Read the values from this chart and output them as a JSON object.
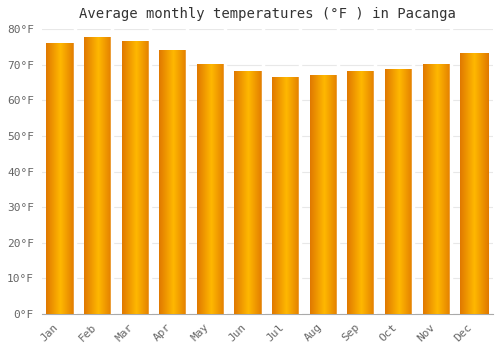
{
  "title": "Average monthly temperatures (°F ) in Pacanga",
  "months": [
    "Jan",
    "Feb",
    "Mar",
    "Apr",
    "May",
    "Jun",
    "Jul",
    "Aug",
    "Sep",
    "Oct",
    "Nov",
    "Dec"
  ],
  "values": [
    76,
    77.5,
    76.5,
    74,
    70,
    68,
    66.5,
    67,
    68,
    68.5,
    70,
    73
  ],
  "ylim": [
    0,
    80
  ],
  "yticks": [
    0,
    10,
    20,
    30,
    40,
    50,
    60,
    70,
    80
  ],
  "ytick_labels": [
    "0°F",
    "10°F",
    "20°F",
    "30°F",
    "40°F",
    "50°F",
    "60°F",
    "70°F",
    "80°F"
  ],
  "background_color": "#FFFFFF",
  "grid_color": "#E8E8E8",
  "bar_color_center": "#FFB800",
  "bar_color_edge": "#E07800",
  "title_fontsize": 10,
  "tick_fontsize": 8,
  "bar_width": 0.75
}
